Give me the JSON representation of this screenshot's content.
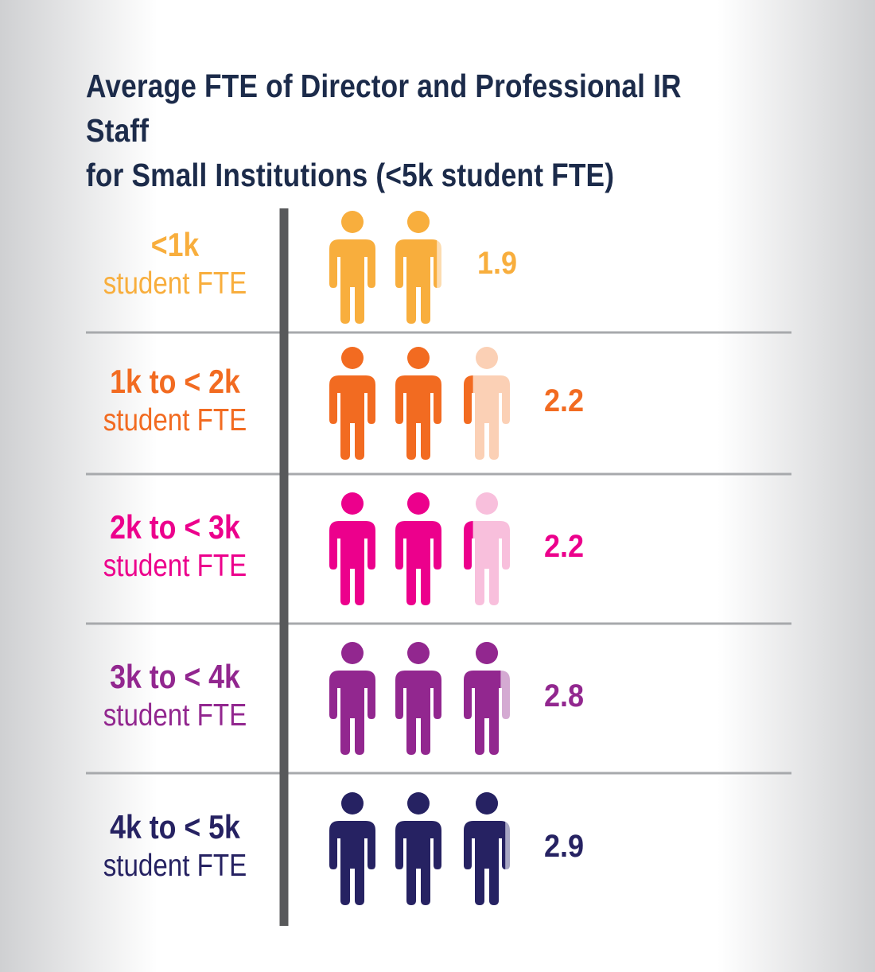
{
  "title_line1": "Average FTE of Director and Professional IR Staff",
  "title_line2": "for Small Institutions (<5k student FTE)",
  "chart_data": {
    "type": "bar",
    "title": "Average FTE of Director and Professional IR Staff for Small Institutions (<5k student FTE)",
    "categories": [
      "<1k student FTE",
      "1k to < 2k student FTE",
      "2k to < 3k student FTE",
      "3k to < 4k student FTE",
      "4k to < 5k student FTE"
    ],
    "values": [
      1.9,
      2.2,
      2.2,
      2.8,
      2.9
    ],
    "rows": [
      {
        "label1": "<1k",
        "label2": "student FTE",
        "value": 1.9,
        "value_text": "1.9",
        "color": "#f8ae3d",
        "light": "#fcdcb0"
      },
      {
        "label1": "1k to < 2k",
        "label2": "student FTE",
        "value": 2.2,
        "value_text": "2.2",
        "color": "#f26b21",
        "light": "#fbd0b5"
      },
      {
        "label1": "2k to < 3k",
        "label2": "student FTE",
        "value": 2.2,
        "value_text": "2.2",
        "color": "#ec008c",
        "light": "#f8bfdc"
      },
      {
        "label1": "3k to < 4k",
        "label2": "student FTE",
        "value": 2.8,
        "value_text": "2.8",
        "color": "#92278f",
        "light": "#d4aad2"
      },
      {
        "label1": "4k to < 5k",
        "label2": "student FTE",
        "value": 2.9,
        "value_text": "2.9",
        "color": "#262262",
        "light": "#a7a6c3"
      }
    ]
  },
  "colors": {
    "title": "#1c2b4a",
    "axis": "#58595b",
    "divider": "#a7a9ac"
  },
  "icon": "person-icon"
}
